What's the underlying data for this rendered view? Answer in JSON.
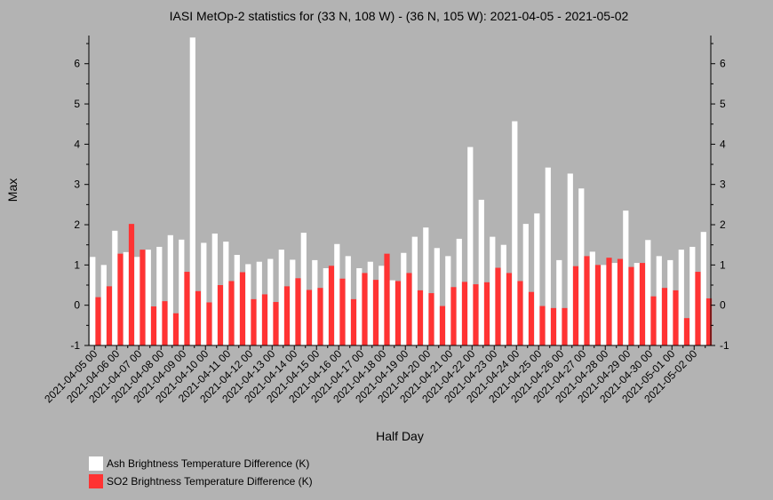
{
  "chart_data": {
    "type": "bar",
    "title": "IASI MetOp-2 statistics for (33 N, 108 W) - (36 N, 105 W): 2021-04-05 - 2021-05-02",
    "xlabel": "Half Day",
    "ylabel": "Max",
    "ylim": [
      -1,
      6.7
    ],
    "yticks": [
      -1,
      0,
      1,
      2,
      3,
      4,
      5,
      6
    ],
    "categories": [
      "2021-04-05 00",
      "2021-04-05 12",
      "2021-04-06 00",
      "2021-04-06 12",
      "2021-04-07 00",
      "2021-04-07 12",
      "2021-04-08 00",
      "2021-04-08 12",
      "2021-04-09 00",
      "2021-04-09 12",
      "2021-04-10 00",
      "2021-04-10 12",
      "2021-04-11 00",
      "2021-04-11 12",
      "2021-04-12 00",
      "2021-04-12 12",
      "2021-04-13 00",
      "2021-04-13 12",
      "2021-04-14 00",
      "2021-04-14 12",
      "2021-04-15 00",
      "2021-04-15 12",
      "2021-04-16 00",
      "2021-04-16 12",
      "2021-04-17 00",
      "2021-04-17 12",
      "2021-04-18 00",
      "2021-04-18 12",
      "2021-04-19 00",
      "2021-04-19 12",
      "2021-04-20 00",
      "2021-04-20 12",
      "2021-04-21 00",
      "2021-04-21 12",
      "2021-04-22 00",
      "2021-04-22 12",
      "2021-04-23 00",
      "2021-04-23 12",
      "2021-04-24 00",
      "2021-04-24 12",
      "2021-04-25 00",
      "2021-04-25 12",
      "2021-04-26 00",
      "2021-04-26 12",
      "2021-04-27 00",
      "2021-04-27 12",
      "2021-04-28 00",
      "2021-04-28 12",
      "2021-04-29 00",
      "2021-04-29 12",
      "2021-04-30 00",
      "2021-04-30 12",
      "2021-05-01 00",
      "2021-05-01 12",
      "2021-05-02 00",
      "2021-05-02 12"
    ],
    "tick_labels": [
      "2021-04-05 00",
      "2021-04-06 00",
      "2021-04-07 00",
      "2021-04-08 00",
      "2021-04-09 00",
      "2021-04-10 00",
      "2021-04-11 00",
      "2021-04-12 00",
      "2021-04-13 00",
      "2021-04-14 00",
      "2021-04-15 00",
      "2021-04-16 00",
      "2021-04-17 00",
      "2021-04-18 00",
      "2021-04-19 00",
      "2021-04-20 00",
      "2021-04-21 00",
      "2021-04-22 00",
      "2021-04-23 00",
      "2021-04-24 00",
      "2021-04-25 00",
      "2021-04-26 00",
      "2021-04-27 00",
      "2021-04-28 00",
      "2021-04-29 00",
      "2021-04-30 00",
      "2021-05-01 00",
      "2021-05-02 00"
    ],
    "series": [
      {
        "name": "Ash Brightness Temperature Difference (K)",
        "color": "#ffffff",
        "values": [
          1.2,
          1.0,
          1.85,
          1.32,
          1.2,
          1.38,
          1.45,
          1.74,
          1.63,
          6.65,
          1.55,
          1.78,
          1.58,
          1.25,
          1.02,
          1.08,
          1.15,
          1.38,
          1.13,
          1.8,
          1.12,
          0.92,
          1.52,
          1.22,
          0.92,
          1.08,
          0.98,
          0.62,
          1.3,
          1.7,
          1.93,
          1.42,
          1.22,
          1.65,
          3.93,
          2.62,
          1.7,
          1.5,
          4.57,
          2.02,
          2.28,
          3.42,
          1.12,
          3.27,
          2.9,
          1.33,
          1.0,
          1.05,
          2.35,
          1.05,
          1.62,
          1.22,
          1.12,
          1.38,
          1.45,
          1.82
        ]
      },
      {
        "name": "SO2 Brightness Temperature Difference (K)",
        "color": "#ff3333",
        "values": [
          0.2,
          0.47,
          1.28,
          2.02,
          1.38,
          -0.03,
          0.1,
          -0.2,
          0.83,
          0.35,
          0.07,
          0.5,
          0.6,
          0.82,
          0.15,
          0.27,
          0.08,
          0.47,
          0.67,
          0.38,
          0.43,
          0.98,
          0.66,
          0.15,
          0.8,
          0.63,
          1.28,
          0.6,
          0.8,
          0.37,
          0.3,
          -0.02,
          0.45,
          0.58,
          0.52,
          0.57,
          0.93,
          0.8,
          0.6,
          0.33,
          -0.02,
          -0.07,
          -0.07,
          0.97,
          1.22,
          1.0,
          1.18,
          1.15,
          0.95,
          1.05,
          0.22,
          0.43,
          0.37,
          -0.32,
          0.83,
          0.17
        ]
      }
    ]
  },
  "legend": {
    "ash_label": "Ash Brightness Temperature Difference (K)",
    "so2_label": "SO2 Brightness Temperature Difference (K)",
    "ash_color": "#ffffff",
    "so2_color": "#ff3333"
  }
}
